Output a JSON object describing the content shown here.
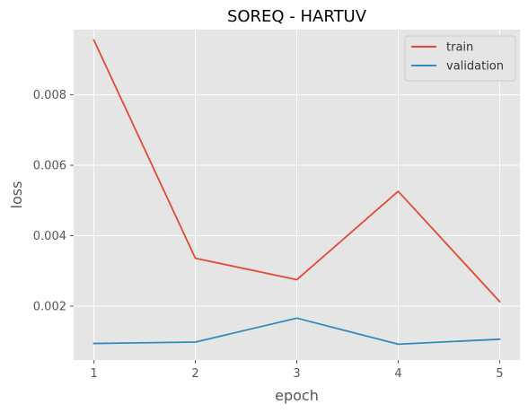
{
  "chart_data": {
    "type": "line",
    "title": "SOREQ - HARTUV",
    "xlabel": "epoch",
    "ylabel": "loss",
    "x": [
      1,
      2,
      3,
      4,
      5
    ],
    "x_ticks": [
      "1",
      "2",
      "3",
      "4",
      "5"
    ],
    "y_ticks": [
      "0.002",
      "0.004",
      "0.006",
      "0.008"
    ],
    "y_tick_values": [
      0.002,
      0.004,
      0.006,
      0.008
    ],
    "xlim": [
      0.8,
      5.2
    ],
    "ylim": [
      0.00047,
      0.00985
    ],
    "grid": true,
    "style": "ggplot",
    "legend_position": "top-right",
    "series": [
      {
        "name": "train",
        "color": "#E24A33",
        "values": [
          0.00955,
          0.00336,
          0.00275,
          0.00526,
          0.00213
        ]
      },
      {
        "name": "validation",
        "color": "#348ABD",
        "values": [
          0.00094,
          0.00098,
          0.00166,
          0.00092,
          0.00106
        ]
      }
    ]
  },
  "colors": {
    "plot_background": "#E5E5E5",
    "grid": "#FFFFFF"
  }
}
